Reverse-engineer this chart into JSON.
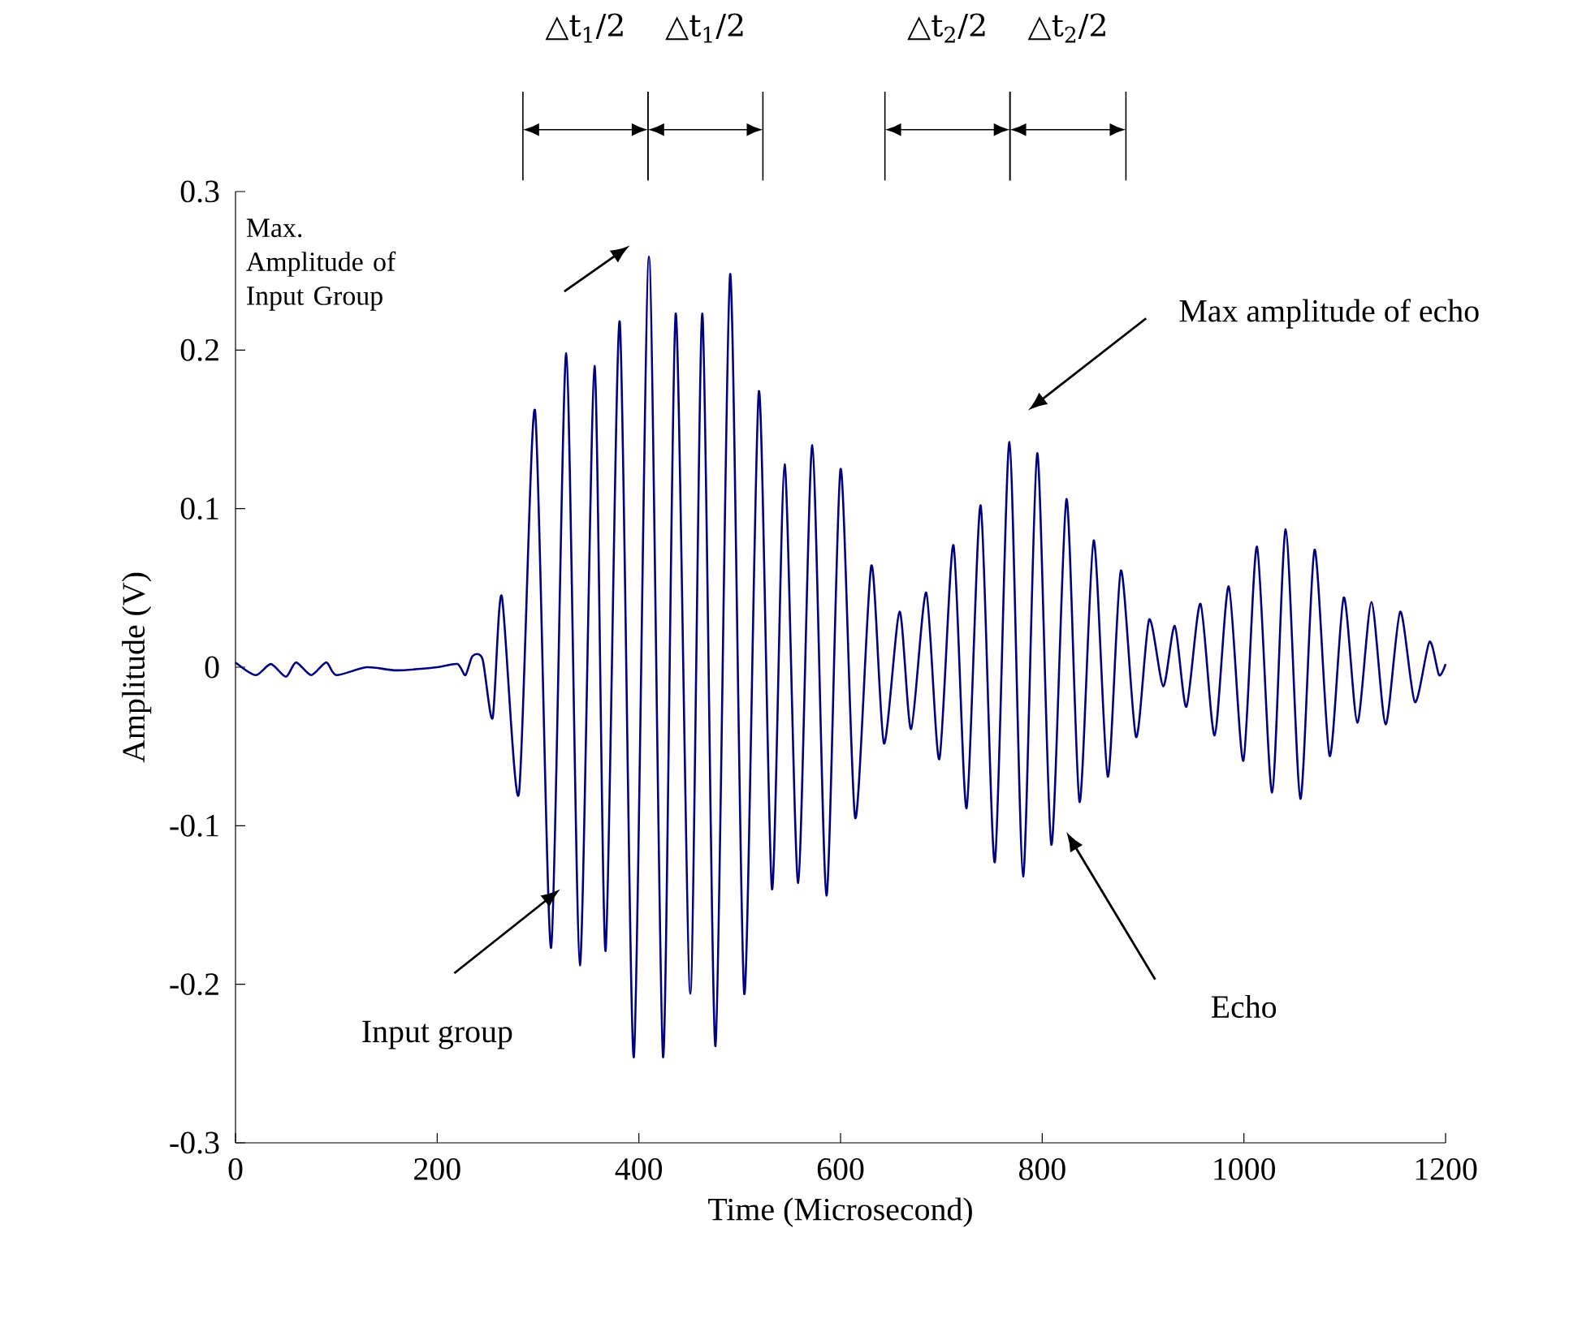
{
  "chart_data": {
    "type": "line",
    "xlabel": "Time (Microsecond)",
    "ylabel": "Amplitude (V)",
    "xlim": [
      0,
      1200
    ],
    "ylim": [
      -0.3,
      0.3
    ],
    "xticks": [
      0,
      200,
      400,
      600,
      800,
      1000,
      1200
    ],
    "yticks": [
      -0.3,
      -0.2,
      -0.1,
      0,
      0.1,
      0.2,
      0.3
    ],
    "grid": false,
    "x": [
      0,
      20,
      35,
      50,
      60,
      75,
      90,
      100,
      130,
      160,
      200,
      220,
      228,
      235,
      245,
      255,
      264,
      281,
      297,
      313,
      328,
      341.5,
      356,
      367,
      381,
      395,
      410,
      424,
      436.5,
      451,
      463,
      476,
      490.5,
      504.5,
      519,
      532,
      544.5,
      558,
      572,
      586,
      600,
      614.5,
      630.5,
      643,
      658.5,
      670,
      685,
      698,
      712,
      725,
      739,
      753,
      767.5,
      781,
      795,
      809,
      824,
      837,
      851,
      865,
      878,
      893,
      906,
      920,
      931.5,
      943,
      957,
      971,
      985,
      999.5,
      1013,
      1028,
      1041.5,
      1056,
      1070,
      1085,
      1099,
      1112.5,
      1126.5,
      1140.5,
      1155,
      1169.5,
      1184,
      1193.5,
      1200
    ],
    "series": [
      {
        "color": "#000080",
        "values": [
          0.003,
          -0.005,
          0.002,
          -0.006,
          0.003,
          -0.005,
          0.003,
          -0.005,
          0.0,
          -0.002,
          0.0,
          0.002,
          -0.005,
          0.007,
          0.005,
          -0.032,
          0.045,
          -0.08,
          0.162,
          -0.177,
          0.198,
          -0.188,
          0.19,
          -0.179,
          0.218,
          -0.246,
          0.259,
          -0.246,
          0.223,
          -0.206,
          0.223,
          -0.239,
          0.248,
          -0.206,
          0.174,
          -0.14,
          0.128,
          -0.136,
          0.14,
          -0.144,
          0.125,
          -0.095,
          0.064,
          -0.048,
          0.035,
          -0.039,
          0.047,
          -0.058,
          0.077,
          -0.089,
          0.102,
          -0.123,
          0.142,
          -0.132,
          0.135,
          -0.112,
          0.106,
          -0.085,
          0.08,
          -0.069,
          0.061,
          -0.044,
          0.03,
          -0.012,
          0.026,
          -0.025,
          0.04,
          -0.043,
          0.051,
          -0.059,
          0.076,
          -0.079,
          0.087,
          -0.083,
          0.074,
          -0.056,
          0.044,
          -0.035,
          0.041,
          -0.036,
          0.035,
          -0.022,
          0.016,
          -0.005,
          0.002
        ]
      }
    ],
    "annotations": [
      "Max. Amplitude of Input Group",
      "Input group",
      "Max amplitude of echo",
      "Echo",
      "△t$_{1}$/2",
      "△t$_{1}$/2",
      "△t$_{2}$/2",
      "△t$_{2}$/2"
    ]
  }
}
